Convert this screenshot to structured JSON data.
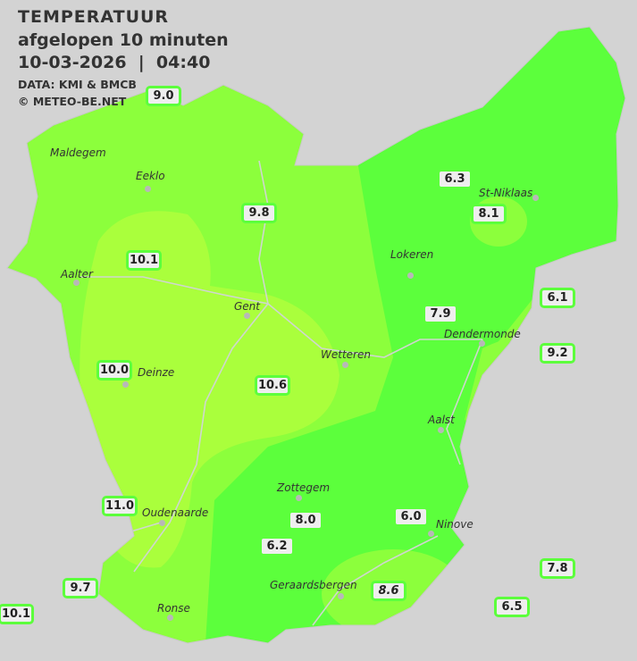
{
  "header": {
    "title": "TEMPERATUUR",
    "subtitle": "afgelopen 10 minuten",
    "datetime": "10-03-2026  |  04:40",
    "source": "DATA: KMI & BMCB",
    "copyright": "© METEO-BE.NET"
  },
  "colors": {
    "background": "#d3d3d3",
    "zone_6_8": "#5cff3c",
    "zone_8_10": "#8cff3c",
    "zone_10_12": "#aaff3c",
    "border": "#5cff3c"
  },
  "towns": [
    "Maldegem",
    "Eeklo",
    "St-Niklaas",
    "Lokeren",
    "Aalter",
    "Gent",
    "Dendermonde",
    "Wetteren",
    "Aalst",
    "Zottegem",
    "Oudenaarde",
    "Geraardsbergen",
    "Ninove",
    "Ronse",
    "Deinze"
  ],
  "temperatures": [
    "9.0",
    "6.3",
    "9.8",
    "8.1",
    "10.1",
    "6.1",
    "7.9",
    "9.2",
    "10.0",
    "10.6",
    "6.0",
    "11.0",
    "8.0",
    "6.2",
    "7.8",
    "9.7",
    "8.6",
    "6.5",
    "10.1"
  ]
}
